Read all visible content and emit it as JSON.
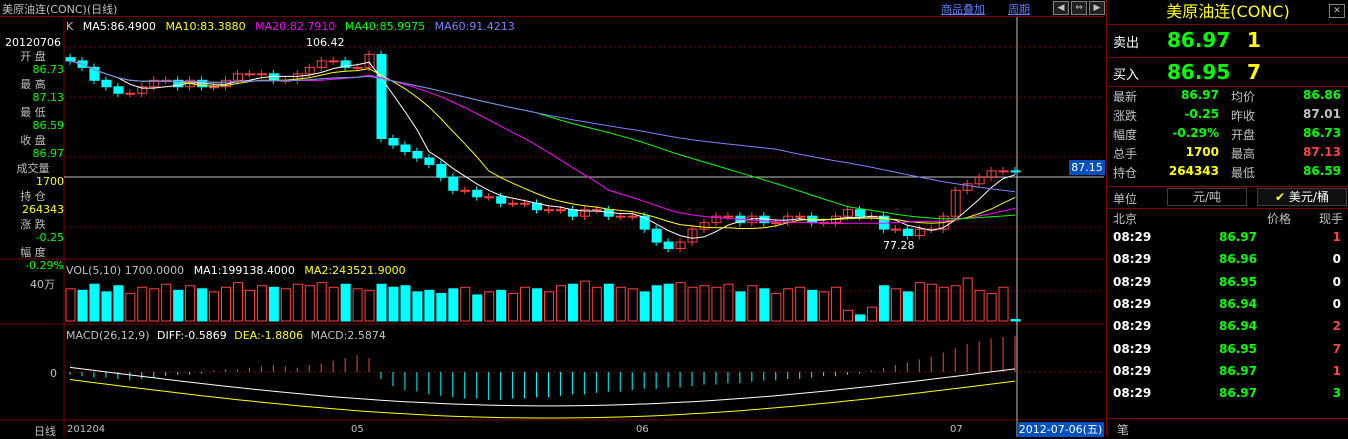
{
  "header": {
    "title": "美原油连(CONC)(日线)",
    "link_overlay": "商品叠加",
    "link_period": "周期"
  },
  "chart_header": {
    "k": "K",
    "ma5": "MA5:86.4900",
    "ma10": "MA10:83.3880",
    "ma20": "MA20:82.7910",
    "ma40": "MA40:85.9975",
    "ma60": "MA60:91.4213"
  },
  "left_info": {
    "date": "20120706",
    "open_label": "开  盘",
    "open": "86.73",
    "high_label": "最  高",
    "high": "87.13",
    "low_label": "最  低",
    "low": "86.59",
    "close_label": "收  盘",
    "close": "86.97",
    "volume_label": "成交量",
    "volume": "1700",
    "oi_label": "持  仓",
    "oi": "264343",
    "change_label": "涨  跌",
    "change": "-0.25",
    "range_label": "幅  度",
    "range": "-0.29%"
  },
  "vol_header": {
    "name": "VOL(5,10) 1700.0000",
    "ma1": "MA1:199138.4000",
    "ma2": "MA2:243521.9000",
    "y_label": "40万"
  },
  "macd_header": {
    "name": "MACD(26,12,9)",
    "diff": "DIFF:-0.5869",
    "dea": "DEA:-1.8806",
    "macd": "MACD:2.5874",
    "zero": "0"
  },
  "annotations": {
    "high_mark": "106.42",
    "low_mark": "77.28",
    "price_badge": "87.15"
  },
  "x_axis": {
    "label": "日线",
    "ticks": [
      "201204",
      "05",
      "06",
      "07"
    ],
    "current_date": "2012-07-06(五)"
  },
  "right_panel": {
    "title": "美原油连(CONC)",
    "sell_label": "卖出",
    "sell_price": "86.97",
    "sell_qty": "1",
    "buy_label": "买入",
    "buy_price": "86.95",
    "buy_qty": "7",
    "stats": [
      {
        "l1": "最新",
        "v1": "86.97",
        "c1": "#00ff00",
        "l2": "均价",
        "v2": "86.86",
        "c2": "#00ff00"
      },
      {
        "l1": "涨跌",
        "v1": "-0.25",
        "c1": "#00ff00",
        "l2": "昨收",
        "v2": "87.01",
        "c2": "#c0c0c0"
      },
      {
        "l1": "幅度",
        "v1": "-0.29%",
        "c1": "#00ff00",
        "l2": "开盘",
        "v2": "86.73",
        "c2": "#00ff00"
      },
      {
        "l1": "总手",
        "v1": "1700",
        "c1": "#ffff00",
        "l2": "最高",
        "v2": "87.13",
        "c2": "#ff4040"
      },
      {
        "l1": "持仓",
        "v1": "264343",
        "c1": "#ffff00",
        "l2": "最低",
        "v2": "86.59",
        "c2": "#00ff00"
      }
    ],
    "unit_label": "单位",
    "unit_value": "元/吨",
    "unit_alt": "美元/桶",
    "trade_headers": [
      "北京",
      "价格",
      "现手"
    ],
    "trades": [
      {
        "time": "08:29",
        "price": "86.97",
        "qty": "1",
        "qc": "#ff4040"
      },
      {
        "time": "08:29",
        "price": "86.96",
        "qty": "0",
        "qc": "#ffffff"
      },
      {
        "time": "08:29",
        "price": "86.95",
        "qty": "0",
        "qc": "#ffffff"
      },
      {
        "time": "08:29",
        "price": "86.94",
        "qty": "0",
        "qc": "#ffffff"
      },
      {
        "time": "08:29",
        "price": "86.94",
        "qty": "2",
        "qc": "#ff4040"
      },
      {
        "time": "08:29",
        "price": "86.95",
        "qty": "7",
        "qc": "#ff4040"
      },
      {
        "time": "08:29",
        "price": "86.97",
        "qty": "1",
        "qc": "#ff4040"
      },
      {
        "time": "08:29",
        "price": "86.97",
        "qty": "3",
        "qc": "#00ff00"
      }
    ],
    "footer": "笔"
  },
  "colors": {
    "ma5": "#ffffff",
    "ma10": "#ffff00",
    "ma20": "#ff00ff",
    "ma40": "#00ff00",
    "ma60": "#8080ff",
    "up": "#ff4040",
    "down": "#00ffff",
    "grid": "#800000"
  },
  "chart_data": {
    "type": "candlestick",
    "closes": [
      104,
      103,
      101,
      100,
      99,
      99,
      100,
      101,
      101,
      100,
      101,
      100,
      100,
      101,
      102,
      102,
      102,
      101,
      101,
      102,
      103,
      104,
      104,
      103,
      103,
      105,
      92,
      91,
      90,
      89,
      88,
      86,
      84,
      84,
      83,
      83,
      82,
      82,
      82,
      81,
      81,
      81,
      80,
      81,
      81,
      80,
      80,
      80,
      78,
      76,
      75,
      76,
      78,
      79,
      80,
      80,
      79,
      80,
      79,
      79,
      80,
      80,
      79,
      79,
      80,
      81,
      80,
      80,
      78,
      78,
      77,
      78,
      78,
      80,
      84,
      85,
      86,
      87,
      87,
      86.97
    ],
    "volumes": [
      21,
      20,
      24,
      19,
      23,
      18,
      22,
      21,
      24,
      20,
      23,
      21,
      19,
      22,
      25,
      20,
      23,
      22,
      21,
      24,
      23,
      25,
      22,
      24,
      21,
      20,
      24,
      22,
      23,
      19,
      20,
      18,
      21,
      22,
      17,
      19,
      20,
      18,
      22,
      21,
      19,
      23,
      24,
      26,
      22,
      24,
      22,
      21,
      19,
      23,
      24,
      25,
      22,
      23,
      22,
      24,
      19,
      23,
      21,
      18,
      21,
      22,
      20,
      19,
      22,
      7,
      4,
      9,
      23,
      21,
      19,
      25,
      24,
      22,
      23,
      28,
      20,
      18,
      22,
      1
    ],
    "macd": [
      -0.2,
      -0.3,
      -0.4,
      -0.4,
      -0.5,
      -0.6,
      -0.5,
      -0.4,
      -0.3,
      -0.2,
      -0.2,
      -0.1,
      0.1,
      0.2,
      0.2,
      0.3,
      0.4,
      0.5,
      0.4,
      0.3,
      0.5,
      0.6,
      0.8,
      1.0,
      1.2,
      1.0,
      -0.5,
      -1.0,
      -1.3,
      -1.4,
      -1.6,
      -1.7,
      -1.8,
      -1.9,
      -1.9,
      -2.0,
      -2.0,
      -1.9,
      -1.9,
      -1.8,
      -1.8,
      -1.7,
      -1.6,
      -1.6,
      -1.5,
      -1.4,
      -1.4,
      -1.3,
      -1.2,
      -1.2,
      -1.1,
      -1.1,
      -1.0,
      -0.9,
      -0.9,
      -0.8,
      -0.8,
      -0.7,
      -0.6,
      -0.6,
      -0.5,
      -0.5,
      -0.4,
      -0.3,
      -0.3,
      -0.2,
      -0.1,
      0.1,
      0.3,
      0.5,
      0.7,
      0.9,
      1.1,
      1.4,
      1.7,
      2.0,
      2.2,
      2.4,
      2.5,
      2.5874
    ]
  }
}
